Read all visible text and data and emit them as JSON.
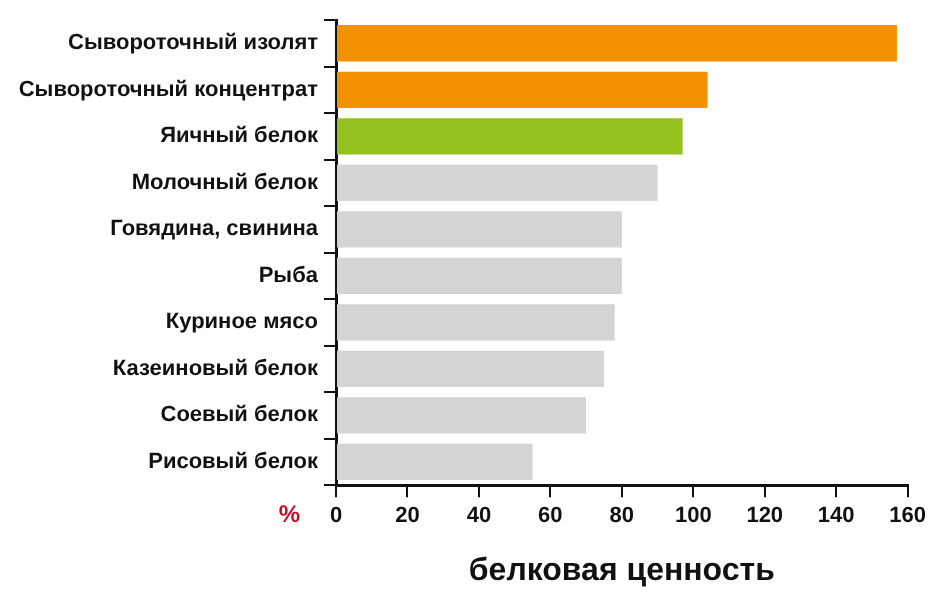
{
  "chart_data": {
    "type": "bar",
    "orientation": "horizontal",
    "xlabel": "белковая ценность",
    "annotations": [
      "%"
    ],
    "categories": [
      "Сывороточный изолят",
      "Сывороточный концентрат",
      "Яичный белок",
      "Молочный белок",
      "Говядина, свинина",
      "Рыба",
      "Куриное мясо",
      "Казеиновый белок",
      "Соевый белок",
      "Рисовый белок"
    ],
    "values": [
      157,
      104,
      97,
      90,
      80,
      80,
      78,
      75,
      70,
      55
    ],
    "colors": [
      "#f39200",
      "#f39200",
      "#95c11f",
      "#d4d4d4",
      "#d4d4d4",
      "#d4d4d4",
      "#d4d4d4",
      "#d4d4d4",
      "#d4d4d4",
      "#d4d4d4"
    ],
    "xlim": [
      0,
      160
    ],
    "xticks": [
      0,
      20,
      40,
      60,
      80,
      100,
      120,
      140,
      160
    ],
    "grid": false,
    "legend": false
  }
}
